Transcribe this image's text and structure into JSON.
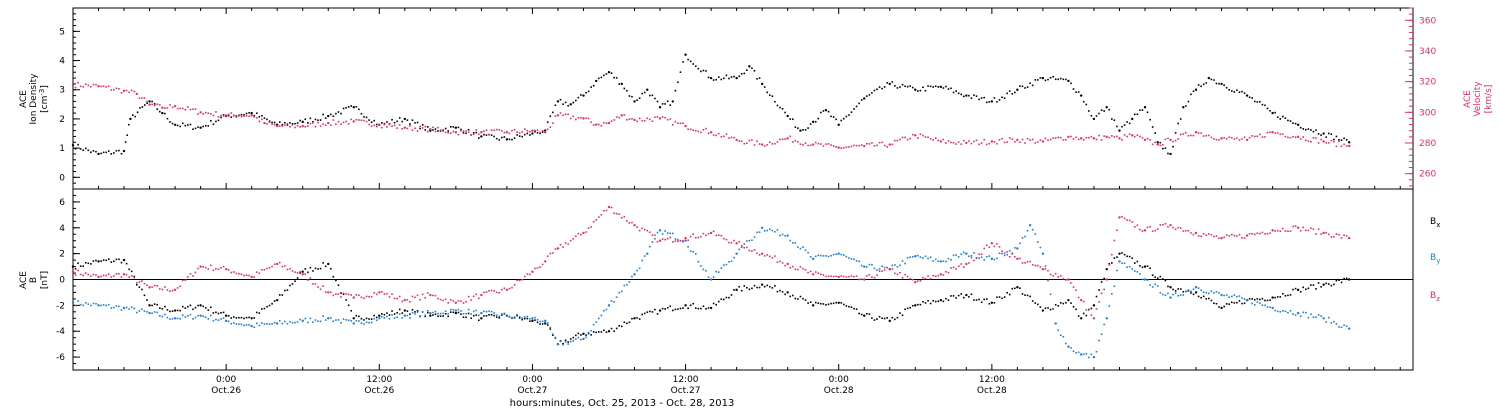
{
  "chart_data": [
    {
      "type": "scatter",
      "x_range": [
        -12,
        93
      ],
      "left_axis": {
        "label_line1": "ACE",
        "label_line2": "Ion Density",
        "unit_prefix": "[cm",
        "unit_exp": "-3",
        "unit_suffix": "]",
        "ylim": [
          -0.4,
          5.8
        ],
        "ticks": [
          0,
          1,
          2,
          3,
          4,
          5
        ],
        "color": "#000000"
      },
      "right_axis": {
        "label_line1": "ACE",
        "label_line2": "Velocity",
        "unit": "[km/s]",
        "ylim": [
          250,
          368
        ],
        "ticks": [
          260,
          280,
          300,
          320,
          340,
          360
        ],
        "color": "#e8305c"
      },
      "series": [
        {
          "axis": "left",
          "color": "#000000",
          "x": [
            -12,
            -10,
            -8,
            -7.5,
            -6,
            -5,
            -4,
            -2,
            0,
            2,
            4,
            6,
            8,
            10,
            12,
            14,
            16,
            18,
            20,
            22,
            24,
            25,
            26,
            27,
            28,
            29,
            30,
            31,
            32,
            33,
            34,
            35,
            36,
            38,
            40,
            41,
            42,
            44,
            45,
            46,
            47,
            48,
            50,
            52,
            54,
            56,
            58,
            60,
            62,
            64,
            66,
            67,
            68,
            69,
            70,
            71,
            72,
            73,
            74,
            75,
            76,
            77,
            78,
            80,
            82,
            84,
            86,
            88
          ],
          "y": [
            1.1,
            0.8,
            0.9,
            2.0,
            2.6,
            2.2,
            1.8,
            1.7,
            2.1,
            2.2,
            1.8,
            1.9,
            2.1,
            2.4,
            1.8,
            2.0,
            1.6,
            1.7,
            1.4,
            1.3,
            1.5,
            1.6,
            2.6,
            2.5,
            2.8,
            3.3,
            3.6,
            3.2,
            2.6,
            3.0,
            2.4,
            2.6,
            4.2,
            3.4,
            3.4,
            3.8,
            3.2,
            2.1,
            1.6,
            1.9,
            2.3,
            1.8,
            2.7,
            3.2,
            3.0,
            3.1,
            2.8,
            2.6,
            3.0,
            3.4,
            3.3,
            2.8,
            2.0,
            2.4,
            1.6,
            2.0,
            2.4,
            1.2,
            0.8,
            2.4,
            3.0,
            3.4,
            3.2,
            2.8,
            2.2,
            1.8,
            1.5,
            1.2
          ]
        },
        {
          "axis": "right",
          "color": "#e8305c",
          "x": [
            -12,
            -10,
            -8,
            -7,
            -6,
            -5,
            -4,
            -2,
            0,
            2,
            3,
            4,
            6,
            8,
            10,
            12,
            14,
            16,
            18,
            20,
            22,
            24,
            25,
            26,
            28,
            29,
            30,
            31,
            32,
            34,
            36,
            38,
            40,
            42,
            44,
            46,
            48,
            50,
            52,
            54,
            56,
            58,
            60,
            62,
            64,
            66,
            67,
            68,
            69,
            70,
            71,
            72,
            73,
            74,
            76,
            78,
            80,
            82,
            84,
            86,
            88
          ],
          "y": [
            318,
            317,
            314,
            312,
            305,
            303,
            304,
            300,
            298,
            298,
            293,
            291,
            291,
            293,
            294,
            292,
            290,
            289,
            287,
            287,
            287,
            288,
            287,
            298,
            296,
            292,
            293,
            298,
            295,
            296,
            291,
            287,
            282,
            279,
            283,
            279,
            277,
            278,
            279,
            285,
            281,
            280,
            281,
            282,
            281,
            284,
            283,
            283,
            284,
            283,
            285,
            282,
            279,
            282,
            287,
            283,
            282,
            287,
            284,
            281,
            278
          ]
        }
      ]
    },
    {
      "type": "scatter",
      "x_range": [
        -12,
        93
      ],
      "axis": {
        "label_line1": "ACE",
        "label_line2": "B",
        "unit": "[nT]",
        "ylim": [
          -7,
          7
        ],
        "ticks": [
          -6,
          -4,
          -2,
          0,
          2,
          4,
          6
        ],
        "zero_line": true
      },
      "series": [
        {
          "name": "Bx",
          "label_main": "B",
          "label_sub": "x",
          "color": "#000000",
          "x": [
            -12,
            -10,
            -8,
            -6,
            -4,
            -2,
            0,
            2,
            4,
            6,
            8,
            10,
            12,
            14,
            16,
            18,
            20,
            22,
            24,
            25,
            26,
            28,
            30,
            32,
            34,
            36,
            38,
            40,
            42,
            44,
            46,
            48,
            50,
            52,
            54,
            56,
            58,
            60,
            62,
            64,
            66,
            67,
            68,
            69,
            70,
            72,
            74,
            76,
            78,
            80,
            82,
            84,
            86,
            88
          ],
          "y": [
            1.0,
            1.4,
            1.5,
            -2.0,
            -2.4,
            -2.0,
            -2.8,
            -3.0,
            -1.6,
            0.6,
            1.2,
            -3.0,
            -2.8,
            -2.4,
            -2.8,
            -2.6,
            -3.0,
            -2.8,
            -3.2,
            -3.4,
            -5.0,
            -4.2,
            -4.0,
            -3.0,
            -2.4,
            -2.0,
            -2.2,
            -0.8,
            -0.4,
            -1.0,
            -2.0,
            -1.8,
            -2.8,
            -3.2,
            -2.0,
            -1.6,
            -1.2,
            -1.8,
            -0.6,
            -2.4,
            -1.6,
            -3.0,
            -2.0,
            0.8,
            2.0,
            1.0,
            -0.6,
            -1.0,
            -2.2,
            -1.6,
            -1.4,
            -0.8,
            -0.4,
            0.0
          ]
        },
        {
          "name": "By",
          "label_main": "B",
          "label_sub": "y",
          "color": "#1e7fd8",
          "x": [
            -12,
            -10,
            -8,
            -6,
            -4,
            -2,
            0,
            2,
            4,
            6,
            8,
            10,
            12,
            14,
            16,
            18,
            20,
            22,
            24,
            25,
            26,
            28,
            30,
            32,
            33,
            34,
            36,
            38,
            40,
            42,
            44,
            46,
            48,
            50,
            52,
            54,
            56,
            58,
            60,
            62,
            63,
            64,
            65,
            66,
            67,
            68,
            69,
            70,
            72,
            74,
            76,
            78,
            80,
            82,
            84,
            86,
            88
          ],
          "y": [
            -1.8,
            -2.0,
            -2.2,
            -2.6,
            -3.0,
            -2.8,
            -3.2,
            -3.6,
            -3.4,
            -3.2,
            -3.0,
            -3.4,
            -3.0,
            -2.8,
            -2.6,
            -2.4,
            -2.6,
            -2.8,
            -3.0,
            -3.2,
            -5.0,
            -4.6,
            -2.0,
            0.4,
            2.0,
            3.8,
            3.0,
            0.0,
            2.0,
            4.0,
            3.4,
            1.6,
            2.0,
            1.0,
            0.8,
            1.8,
            1.4,
            2.0,
            1.6,
            2.4,
            4.2,
            2.0,
            -3.4,
            -5.2,
            -5.8,
            -6.0,
            -3.0,
            1.4,
            0.0,
            -1.4,
            -0.6,
            -1.2,
            -1.6,
            -2.2,
            -2.6,
            -3.0,
            -3.8
          ]
        },
        {
          "name": "Bz",
          "label_main": "B",
          "label_sub": "z",
          "color": "#e8305c",
          "x": [
            -12,
            -10,
            -8,
            -6,
            -4,
            -2,
            0,
            2,
            4,
            6,
            8,
            10,
            12,
            14,
            16,
            18,
            20,
            22,
            24,
            25,
            26,
            28,
            30,
            32,
            34,
            36,
            38,
            40,
            42,
            44,
            46,
            48,
            50,
            52,
            54,
            56,
            58,
            60,
            62,
            64,
            66,
            67,
            68,
            69,
            70,
            72,
            74,
            76,
            78,
            80,
            82,
            84,
            86,
            88
          ],
          "y": [
            0.6,
            0.2,
            0.4,
            -0.6,
            -0.8,
            1.0,
            0.8,
            0.2,
            1.2,
            0.4,
            -1.0,
            -1.4,
            -1.0,
            -1.6,
            -1.2,
            -1.8,
            -1.2,
            -0.8,
            0.6,
            1.4,
            2.4,
            3.6,
            5.6,
            4.2,
            3.0,
            3.2,
            3.6,
            2.8,
            2.0,
            1.2,
            0.4,
            0.2,
            0.0,
            0.8,
            -0.2,
            0.4,
            1.2,
            2.8,
            1.6,
            0.8,
            0.0,
            -1.6,
            -3.0,
            0.0,
            4.8,
            3.8,
            4.2,
            3.6,
            3.2,
            3.4,
            3.8,
            4.0,
            3.6,
            3.2
          ]
        }
      ]
    }
  ],
  "time_axis": {
    "tick_hours": [
      0,
      12,
      24,
      36,
      48,
      60
    ],
    "tick_time": [
      "0:00",
      "12:00",
      "0:00",
      "12:00",
      "0:00",
      "12:00"
    ],
    "tick_date": [
      "Oct.26",
      "Oct.26",
      "Oct.27",
      "Oct.27",
      "Oct.28",
      "Oct.28"
    ],
    "title": "hours:minutes, Oct. 25, 2013 - Oct. 28, 2013"
  }
}
